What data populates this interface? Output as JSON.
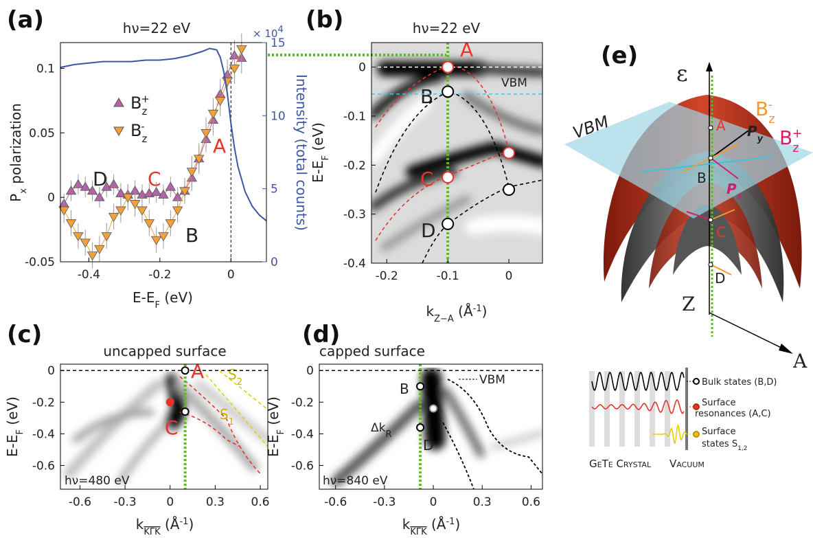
{
  "chart_data": [
    {
      "panel": "(a)",
      "type": "line",
      "title": "hν=22 eV",
      "x_label": [
        "E-E",
        "F",
        " (eV)"
      ],
      "y_label": [
        "P",
        "x",
        " polarization"
      ],
      "y2_label": "Intensity  (total counts)",
      "y2_multiplier": [
        "× 10",
        "4"
      ],
      "xlim": [
        -0.48,
        0.1
      ],
      "xticks": [
        -0.4,
        -0.2,
        0
      ],
      "ylim": [
        -0.05,
        0.12
      ],
      "yticks": [
        -0.05,
        0,
        0.05,
        0.1
      ],
      "y2lim": [
        0,
        15
      ],
      "y2ticks": [
        0,
        5,
        10,
        15
      ],
      "vline_x": 0,
      "series": [
        {
          "name": [
            "B",
            "z",
            "+"
          ],
          "color": "#b066a4",
          "marker": "triangle-up",
          "x": [
            -0.47,
            -0.45,
            -0.43,
            -0.41,
            -0.39,
            -0.37,
            -0.35,
            -0.33,
            -0.31,
            -0.29,
            -0.27,
            -0.25,
            -0.23,
            -0.21,
            -0.19,
            -0.17,
            -0.15,
            -0.13,
            -0.11,
            -0.09,
            -0.07,
            -0.05,
            -0.03,
            -0.01,
            0.01,
            0.03
          ],
          "values": [
            -0.005,
            0.005,
            0.01,
            0.008,
            0.005,
            0,
            0.008,
            0.01,
            0.003,
            0.002,
            0.005,
            0.002,
            0.003,
            0.004,
            0.002,
            0.008,
            0,
            0.005,
            0.015,
            0.03,
            0.045,
            0.06,
            0.08,
            0.095,
            0.11,
            0.108
          ],
          "errors": [
            0.008,
            0.008,
            0.008,
            0.008,
            0.008,
            0.008,
            0.008,
            0.008,
            0.008,
            0.008,
            0.008,
            0.008,
            0.008,
            0.008,
            0.008,
            0.008,
            0.008,
            0.008,
            0.01,
            0.01,
            0.01,
            0.012,
            0.012,
            0.012,
            0.012,
            0.012
          ]
        },
        {
          "name": [
            "B",
            "z",
            "-"
          ],
          "color": "#f2a03a",
          "marker": "triangle-down",
          "x": [
            -0.47,
            -0.45,
            -0.43,
            -0.41,
            -0.39,
            -0.37,
            -0.35,
            -0.33,
            -0.31,
            -0.29,
            -0.27,
            -0.25,
            -0.23,
            -0.21,
            -0.19,
            -0.17,
            -0.15,
            -0.13,
            -0.11,
            -0.09,
            -0.07,
            -0.05,
            -0.03,
            -0.01,
            0.01,
            0.03
          ],
          "values": [
            -0.01,
            -0.02,
            -0.03,
            -0.035,
            -0.045,
            -0.04,
            -0.03,
            -0.015,
            -0.01,
            0,
            -0.005,
            -0.01,
            -0.02,
            -0.033,
            -0.03,
            -0.02,
            -0.01,
            0.005,
            0.02,
            0.03,
            0.05,
            0.065,
            0.075,
            0.09,
            0.1,
            0.115
          ],
          "errors": [
            0.01,
            0.01,
            0.01,
            0.01,
            0.01,
            0.01,
            0.01,
            0.01,
            0.01,
            0.01,
            0.01,
            0.01,
            0.01,
            0.01,
            0.01,
            0.01,
            0.01,
            0.01,
            0.012,
            0.012,
            0.012,
            0.012,
            0.012,
            0.012,
            0.012,
            0.012
          ]
        },
        {
          "axis": "y2",
          "color": "#3d55a5",
          "x": [
            -0.48,
            -0.44,
            -0.4,
            -0.36,
            -0.32,
            -0.28,
            -0.24,
            -0.2,
            -0.16,
            -0.12,
            -0.08,
            -0.06,
            -0.04,
            -0.03,
            -0.02,
            -0.01,
            0,
            0.01,
            0.02,
            0.04,
            0.06,
            0.08,
            0.1
          ],
          "values": [
            13.3,
            13.5,
            13.6,
            13.7,
            13.7,
            13.7,
            13.8,
            13.8,
            13.9,
            14.1,
            14.4,
            14.6,
            14.5,
            14.0,
            13.0,
            11.5,
            9.5,
            7.8,
            6.5,
            4.8,
            3.8,
            3.2,
            2.8
          ]
        }
      ],
      "annotations": [
        "D",
        "C",
        "A",
        "B"
      ]
    },
    {
      "panel": "(b)",
      "type": "image",
      "title": "hν=22 eV",
      "x_label": [
        "k",
        "Z−A",
        " (Å",
        "-1",
        ")"
      ],
      "y_label": [
        "E-E",
        "F",
        " (eV)"
      ],
      "xlim": [
        -0.225,
        0.055
      ],
      "xticks": [
        -0.2,
        -0.1,
        0
      ],
      "ylim": [
        -0.4,
        0.05
      ],
      "yticks": [
        0,
        -0.1,
        -0.2,
        -0.3,
        -0.4
      ],
      "guide_x": -0.1,
      "hlines": [
        {
          "y": 0,
          "color": "#ffffff"
        },
        {
          "y": -0.055,
          "color": "#44c8d8"
        }
      ],
      "points": {
        "x": [
          -0.1,
          -0.1,
          -0.1,
          0,
          0,
          -0.1
        ],
        "y": [
          0,
          -0.05,
          -0.225,
          -0.175,
          -0.25,
          -0.32
        ],
        "colors": [
          "#e8332a",
          "#000000",
          "#e8332a",
          "#e8332a",
          "#000000",
          "#000000"
        ],
        "fills": [
          "#ffffff",
          "#ffffff",
          "#ffffff",
          "#ffffff",
          "#ffffff",
          "#ffffff"
        ]
      },
      "annotations": [
        "A",
        "B",
        "C",
        "D",
        "VBM"
      ]
    },
    {
      "panel": "(c)",
      "type": "image",
      "title": "uncapped surface",
      "x_label": [
        "k",
        "KΓK",
        " (Å",
        "-1",
        ")"
      ],
      "y_label": [
        "E-E",
        "F",
        " (eV)"
      ],
      "xlim": [
        -0.73,
        0.65
      ],
      "xticks": [
        -0.6,
        -0.3,
        0,
        0.3,
        0.6
      ],
      "ylim": [
        -0.75,
        0.04
      ],
      "yticks": [
        0,
        -0.2,
        -0.4,
        -0.6
      ],
      "guide_x": 0.1,
      "hlines": [
        {
          "y": 0,
          "color": "#000000"
        }
      ],
      "points": {
        "x": [
          0.1,
          0.1,
          0
        ],
        "y": [
          0,
          -0.26,
          -0.2
        ],
        "colors": [
          "#000000",
          "#000000",
          "#e8332a"
        ],
        "fills": [
          "#ffffff",
          "#ffffff",
          "#e8332a"
        ]
      },
      "annotations": [
        "A",
        "C",
        [
          "S",
          "2"
        ],
        [
          "S",
          "1"
        ]
      ],
      "energy_label": "hν=480 eV"
    },
    {
      "panel": "(d)",
      "type": "image",
      "title": "capped surface",
      "x_label": [
        "k",
        "KΓK",
        " (Å",
        "-1",
        ")"
      ],
      "y_label": [
        "E-E",
        "F",
        " (eV)"
      ],
      "xlim": [
        -0.7,
        0.67
      ],
      "xticks": [
        -0.6,
        -0.3,
        0,
        0.3,
        0.6
      ],
      "ylim": [
        -0.75,
        0.04
      ],
      "yticks": [
        0,
        -0.2,
        -0.4,
        -0.6
      ],
      "guide_x": -0.08,
      "hlines": [
        {
          "y": 0,
          "color": "#000000"
        }
      ],
      "points": {
        "x": [
          -0.08,
          -0.08,
          0
        ],
        "y": [
          -0.1,
          -0.36,
          -0.24
        ],
        "colors": [
          "#000000",
          "#000000",
          "#999999"
        ],
        "fills": [
          "#ffffff",
          "#ffffff",
          "#ffffff"
        ]
      },
      "annotations": [
        "B",
        [
          "Δk",
          "R"
        ],
        "D",
        "VBM"
      ],
      "energy_label": "hν=840 eV"
    }
  ],
  "diagram": {
    "panel": "(e)",
    "axis_energy": "ε",
    "axis_z": "Z",
    "axis_a": "A",
    "vbm": "VBM",
    "points": [
      "A",
      "B",
      "C",
      "D"
    ],
    "field_minus": [
      "B",
      "z",
      "-"
    ],
    "field_plus": [
      "B",
      "z",
      "+"
    ],
    "py": [
      "P",
      "y"
    ],
    "px": [
      "P",
      "x"
    ],
    "legend": {
      "bulk": "Bulk states (B,D)",
      "resonance": [
        "Surface",
        "resonances (A,C)"
      ],
      "surface": [
        "Surface",
        "states S",
        "1,2"
      ],
      "crystal": "GeTe Crystal",
      "vacuum": "Vacuum"
    }
  }
}
